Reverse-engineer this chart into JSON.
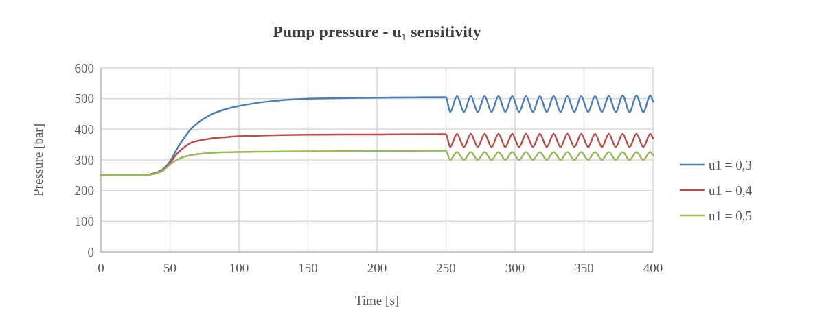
{
  "chart_data": {
    "type": "line",
    "title": "Pump pressure - u₁ sensitivity",
    "xlabel": "Time [s]",
    "ylabel": "Pressure [bar]",
    "x": [
      0,
      30,
      40,
      45,
      50,
      55,
      60,
      65,
      70,
      80,
      90,
      100,
      120,
      150,
      200,
      250,
      253,
      258,
      263,
      268,
      273,
      278,
      283,
      288,
      293,
      298,
      303,
      308,
      313,
      318,
      323,
      328,
      333,
      338,
      343,
      348,
      353,
      358,
      363,
      368,
      373,
      378,
      383,
      388,
      393,
      398,
      400
    ],
    "series": [
      {
        "name": "u1 = 0,3",
        "color": "#4a7ebb",
        "values": [
          250,
          250,
          258,
          270,
          295,
          335,
          370,
          400,
          420,
          448,
          465,
          476,
          490,
          500,
          503,
          505,
          456,
          508,
          456,
          508,
          456,
          508,
          456,
          508,
          456,
          508,
          456,
          508,
          456,
          508,
          456,
          508,
          456,
          508,
          456,
          508,
          456,
          508,
          456,
          509,
          456,
          510,
          456,
          510,
          456,
          510,
          490
        ]
      },
      {
        "name": "u1 = 0,4",
        "color": "#be4b48",
        "values": [
          250,
          250,
          257,
          268,
          290,
          320,
          340,
          355,
          362,
          370,
          374,
          377,
          380,
          382,
          383,
          384,
          342,
          385,
          342,
          385,
          342,
          385,
          342,
          385,
          342,
          385,
          342,
          385,
          342,
          385,
          342,
          385,
          342,
          385,
          342,
          385,
          342,
          385,
          342,
          385,
          342,
          385,
          342,
          385,
          342,
          385,
          370
        ]
      },
      {
        "name": "u1 = 0,5",
        "color": "#98b954",
        "values": [
          250,
          250,
          256,
          265,
          285,
          300,
          310,
          315,
          319,
          323,
          325,
          326,
          327,
          328,
          329,
          330,
          300,
          326,
          300,
          326,
          300,
          326,
          300,
          326,
          300,
          326,
          300,
          326,
          300,
          326,
          300,
          326,
          300,
          326,
          300,
          326,
          300,
          326,
          300,
          326,
          300,
          326,
          300,
          326,
          300,
          326,
          315
        ]
      }
    ],
    "xlim": [
      0,
      400
    ],
    "xticks": [
      0,
      50,
      100,
      150,
      200,
      250,
      300,
      350,
      400
    ],
    "ylim": [
      0,
      600
    ],
    "yticks": [
      0,
      100,
      200,
      300,
      400,
      500,
      600
    ],
    "grid": true,
    "legend": "right",
    "marker": "none",
    "line_style": "solid"
  }
}
